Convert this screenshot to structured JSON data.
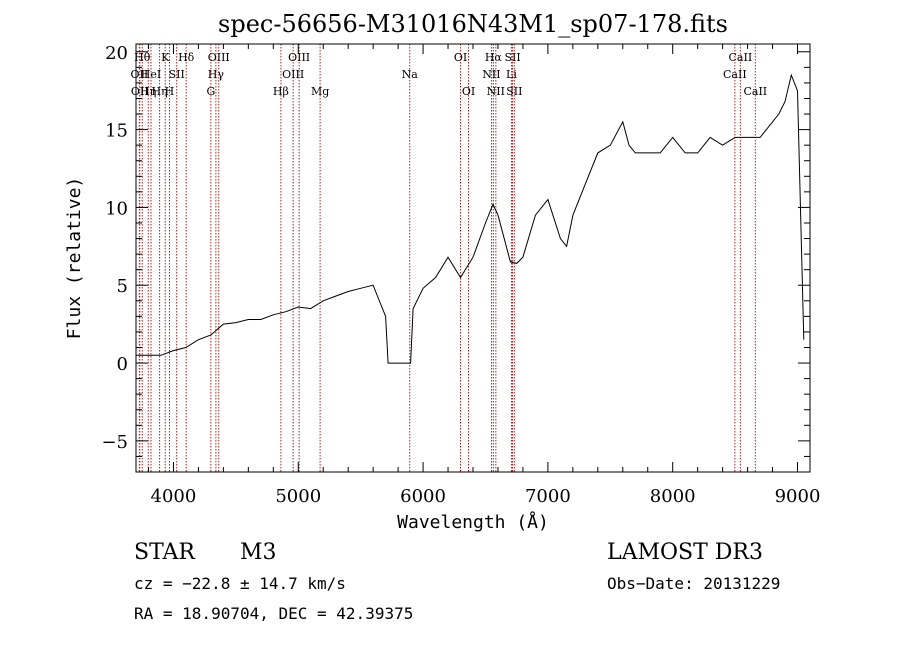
{
  "chart_data": {
    "type": "line",
    "title": "spec-56656-M31016N43M1_sp07-178.fits",
    "xlabel": "Wavelength (Å)",
    "ylabel": "Flux (relative)",
    "xlim": [
      3700,
      9100
    ],
    "ylim": [
      -7,
      20.5
    ],
    "xticks": [
      4000,
      5000,
      6000,
      7000,
      8000,
      9000
    ],
    "yticks": [
      -5,
      0,
      5,
      10,
      15,
      20
    ],
    "x_tick_labels": [
      "4000",
      "5000",
      "6000",
      "7000",
      "8000",
      "9000"
    ],
    "y_tick_labels": [
      "−5",
      "0",
      "5",
      "10",
      "15",
      "20"
    ],
    "series": [
      {
        "name": "spectrum",
        "color": "#000000",
        "x": [
          3700,
          3800,
          3900,
          4000,
          4100,
          4200,
          4300,
          4400,
          4500,
          4600,
          4700,
          4800,
          4900,
          5000,
          5100,
          5200,
          5300,
          5400,
          5500,
          5600,
          5700,
          5720,
          5900,
          5920,
          6000,
          6100,
          6200,
          6300,
          6400,
          6500,
          6560,
          6600,
          6700,
          6750,
          6800,
          6900,
          7000,
          7100,
          7150,
          7200,
          7300,
          7400,
          7500,
          7600,
          7650,
          7700,
          7800,
          7900,
          8000,
          8100,
          8200,
          8300,
          8400,
          8500,
          8600,
          8700,
          8800,
          8850,
          8900,
          8950,
          9000,
          9050
        ],
        "y": [
          0.5,
          0.5,
          0.5,
          0.8,
          1.0,
          1.5,
          1.8,
          2.5,
          2.6,
          2.8,
          2.8,
          3.1,
          3.3,
          3.6,
          3.5,
          4.0,
          4.3,
          4.6,
          4.8,
          5.0,
          3.0,
          0,
          0,
          3.5,
          4.8,
          5.5,
          6.8,
          5.5,
          6.8,
          9.0,
          10.2,
          9.5,
          6.5,
          6.4,
          6.8,
          9.5,
          10.5,
          8.0,
          7.5,
          9.5,
          11.5,
          13.5,
          14.0,
          15.5,
          14.0,
          13.5,
          13.5,
          13.5,
          14.5,
          13.5,
          13.5,
          14.5,
          14.0,
          14.5,
          14.5,
          14.5,
          15.5,
          16.0,
          16.8,
          18.5,
          17.5,
          1.5
        ]
      }
    ],
    "line_marker_color": "#b22222",
    "spectral_lines": [
      {
        "x": 3727,
        "label": "OII",
        "row": 2
      },
      {
        "x": 3730,
        "label": "OII",
        "row": 3
      },
      {
        "x": 3750,
        "label": "Hθ",
        "row": 1
      },
      {
        "x": 3798,
        "label": "Hη",
        "row": 3
      },
      {
        "x": 3820,
        "label": "HeI",
        "row": 2
      },
      {
        "x": 3889,
        "label": "Hη",
        "row": 3
      },
      {
        "x": 3934,
        "label": "K",
        "row": 1
      },
      {
        "x": 3968,
        "label": "H",
        "row": 3
      },
      {
        "x": 4026,
        "label": "SII",
        "row": 2
      },
      {
        "x": 4102,
        "label": "Hδ",
        "row": 1
      },
      {
        "x": 4300,
        "label": "G",
        "row": 3
      },
      {
        "x": 4340,
        "label": "Hγ",
        "row": 2
      },
      {
        "x": 4363,
        "label": "OIII",
        "row": 1
      },
      {
        "x": 4861,
        "label": "Hβ",
        "row": 3
      },
      {
        "x": 4959,
        "label": "OIII",
        "row": 2
      },
      {
        "x": 5007,
        "label": "OIII",
        "row": 1
      },
      {
        "x": 5175,
        "label": "Mg",
        "row": 3
      },
      {
        "x": 5893,
        "label": "Na",
        "row": 2
      },
      {
        "x": 6300,
        "label": "OI",
        "row": 1
      },
      {
        "x": 6364,
        "label": "OI",
        "row": 3
      },
      {
        "x": 6548,
        "label": "NII",
        "row": 2
      },
      {
        "x": 6563,
        "label": "Hα",
        "row": 1
      },
      {
        "x": 6583,
        "label": "NII",
        "row": 3
      },
      {
        "x": 6708,
        "label": "Li",
        "row": 2
      },
      {
        "x": 6717,
        "label": "SII",
        "row": 1
      },
      {
        "x": 6731,
        "label": "SII",
        "row": 3
      },
      {
        "x": 8498,
        "label": "CaII",
        "row": 2
      },
      {
        "x": 8542,
        "label": "CaII",
        "row": 1
      },
      {
        "x": 8662,
        "label": "CaII",
        "row": 3
      }
    ]
  },
  "info": {
    "object_type": "STAR",
    "subclass": "M3",
    "survey": "LAMOST DR3",
    "cz": "cz = −22.8 ± 14.7 km/s",
    "obs_date": "Obs−Date: 20131229",
    "coords": "RA =  18.90704, DEC =  42.39375"
  }
}
